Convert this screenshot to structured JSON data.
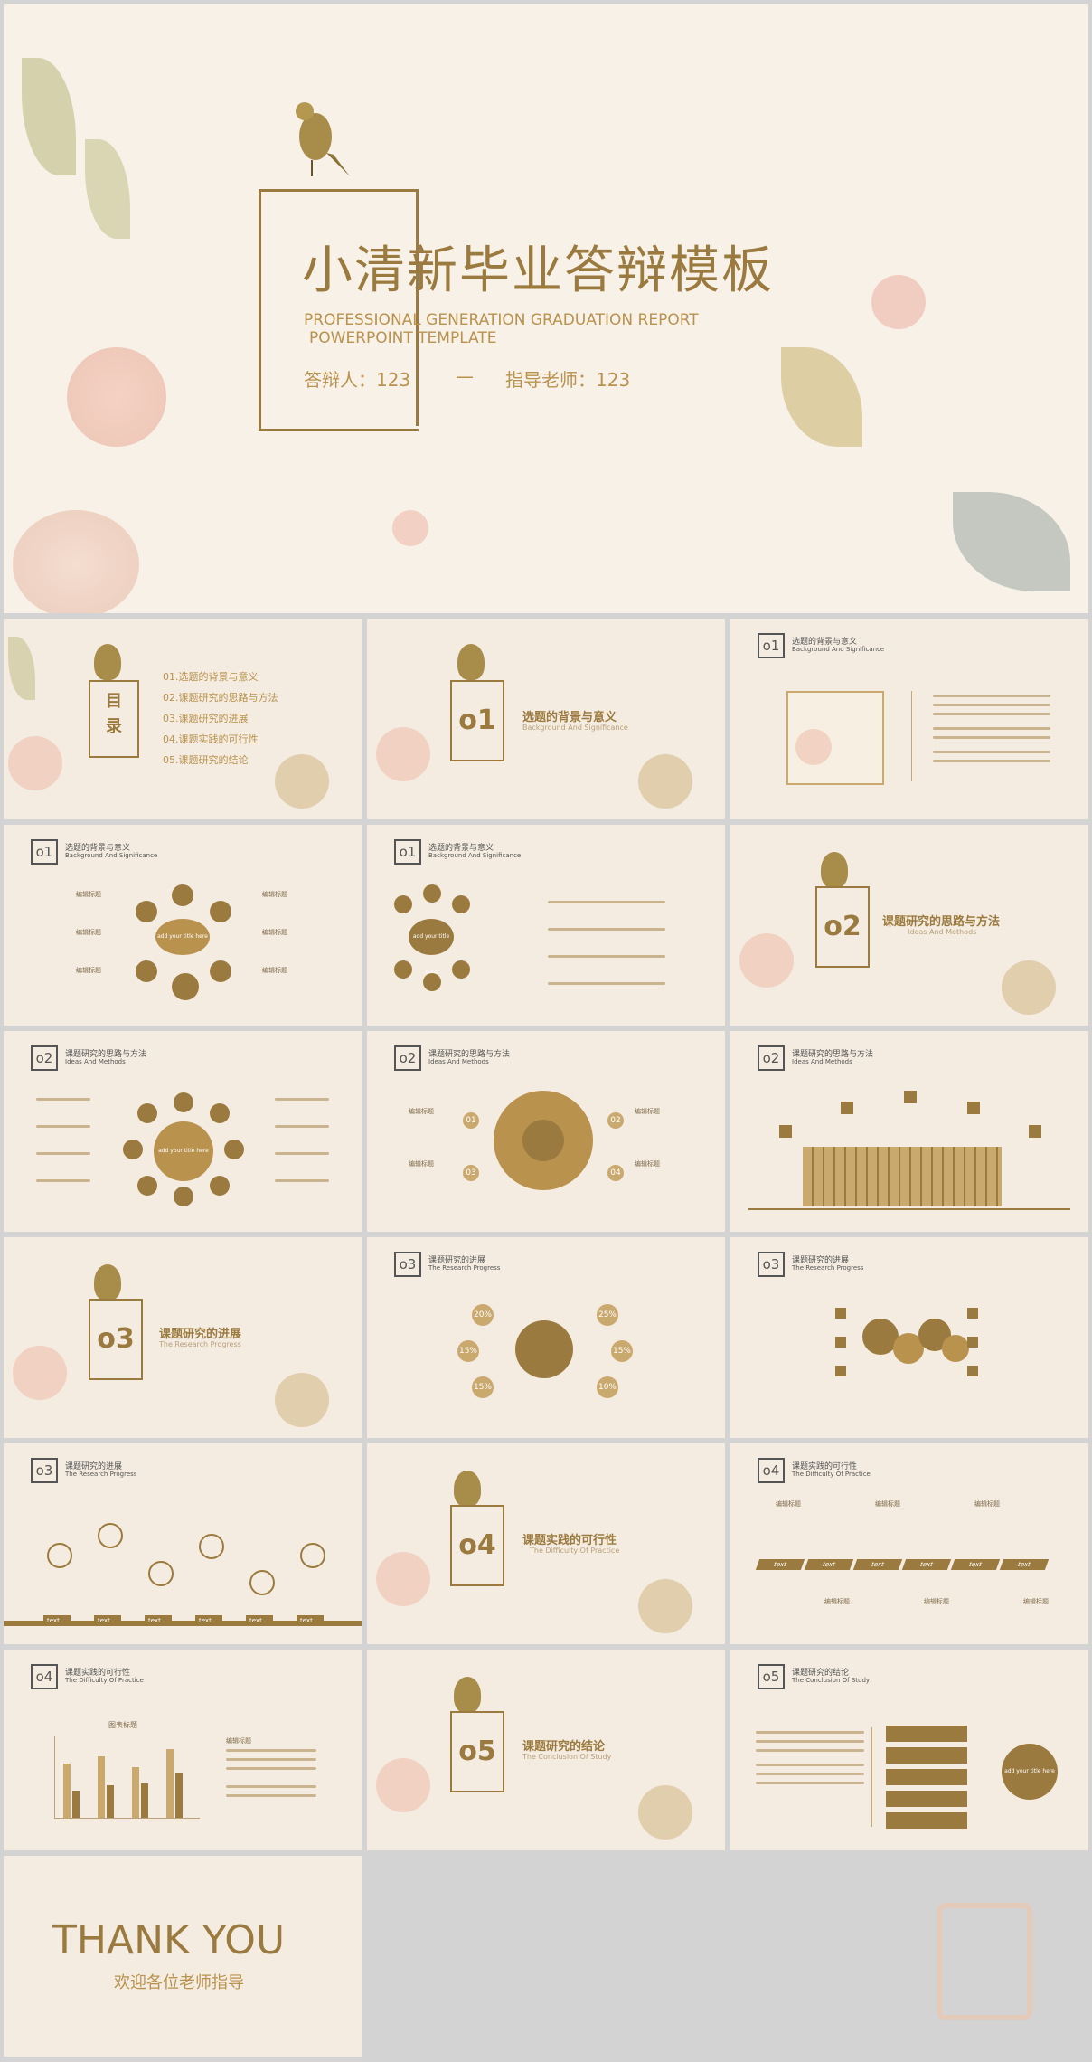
{
  "cover": {
    "title": "小清新毕业答辩模板",
    "subtitle_line1": "PROFESSIONAL GENERATION GRADUATION REPORT",
    "subtitle_line2": "POWERPOINT TEMPLATE",
    "presenter": "答辩人：123",
    "separator": "—",
    "advisor": "指导老师：123"
  },
  "toc": {
    "title_top": "目",
    "title_bottom": "录",
    "items": [
      "01.选题的背景与意义",
      "02.课题研究的思路与方法",
      "03.课题研究的进展",
      "04.课题实践的可行性",
      "05.课题研究的结论"
    ]
  },
  "sections": [
    {
      "num": "o1",
      "cn": "选题的背景与意义",
      "en": "Background And Significance"
    },
    {
      "num": "o2",
      "cn": "课题研究的思路与方法",
      "en": "Ideas And Methods"
    },
    {
      "num": "o3",
      "cn": "课题研究的进展",
      "en": "The Research Progress"
    },
    {
      "num": "o4",
      "cn": "课题实践的可行性",
      "en": "The Difficulty Of Practice"
    },
    {
      "num": "o5",
      "cn": "课题研究的结论",
      "en": "The Conclusion Of Study"
    }
  ],
  "labels": {
    "center_text": "add your title here",
    "edit_title": "编辑标题",
    "text": "text",
    "chart_title": "图表标题",
    "percent": [
      "20%",
      "25%",
      "15%",
      "15%",
      "15%",
      "10%"
    ],
    "small_num": [
      "01",
      "02",
      "03",
      "04"
    ]
  },
  "thankyou": {
    "title": "THANK YOU",
    "subtitle": "欢迎各位老师指导"
  },
  "colors": {
    "gold": "#9b7a3f",
    "bg": "#f4ece0",
    "page": "#d3d3d3"
  }
}
